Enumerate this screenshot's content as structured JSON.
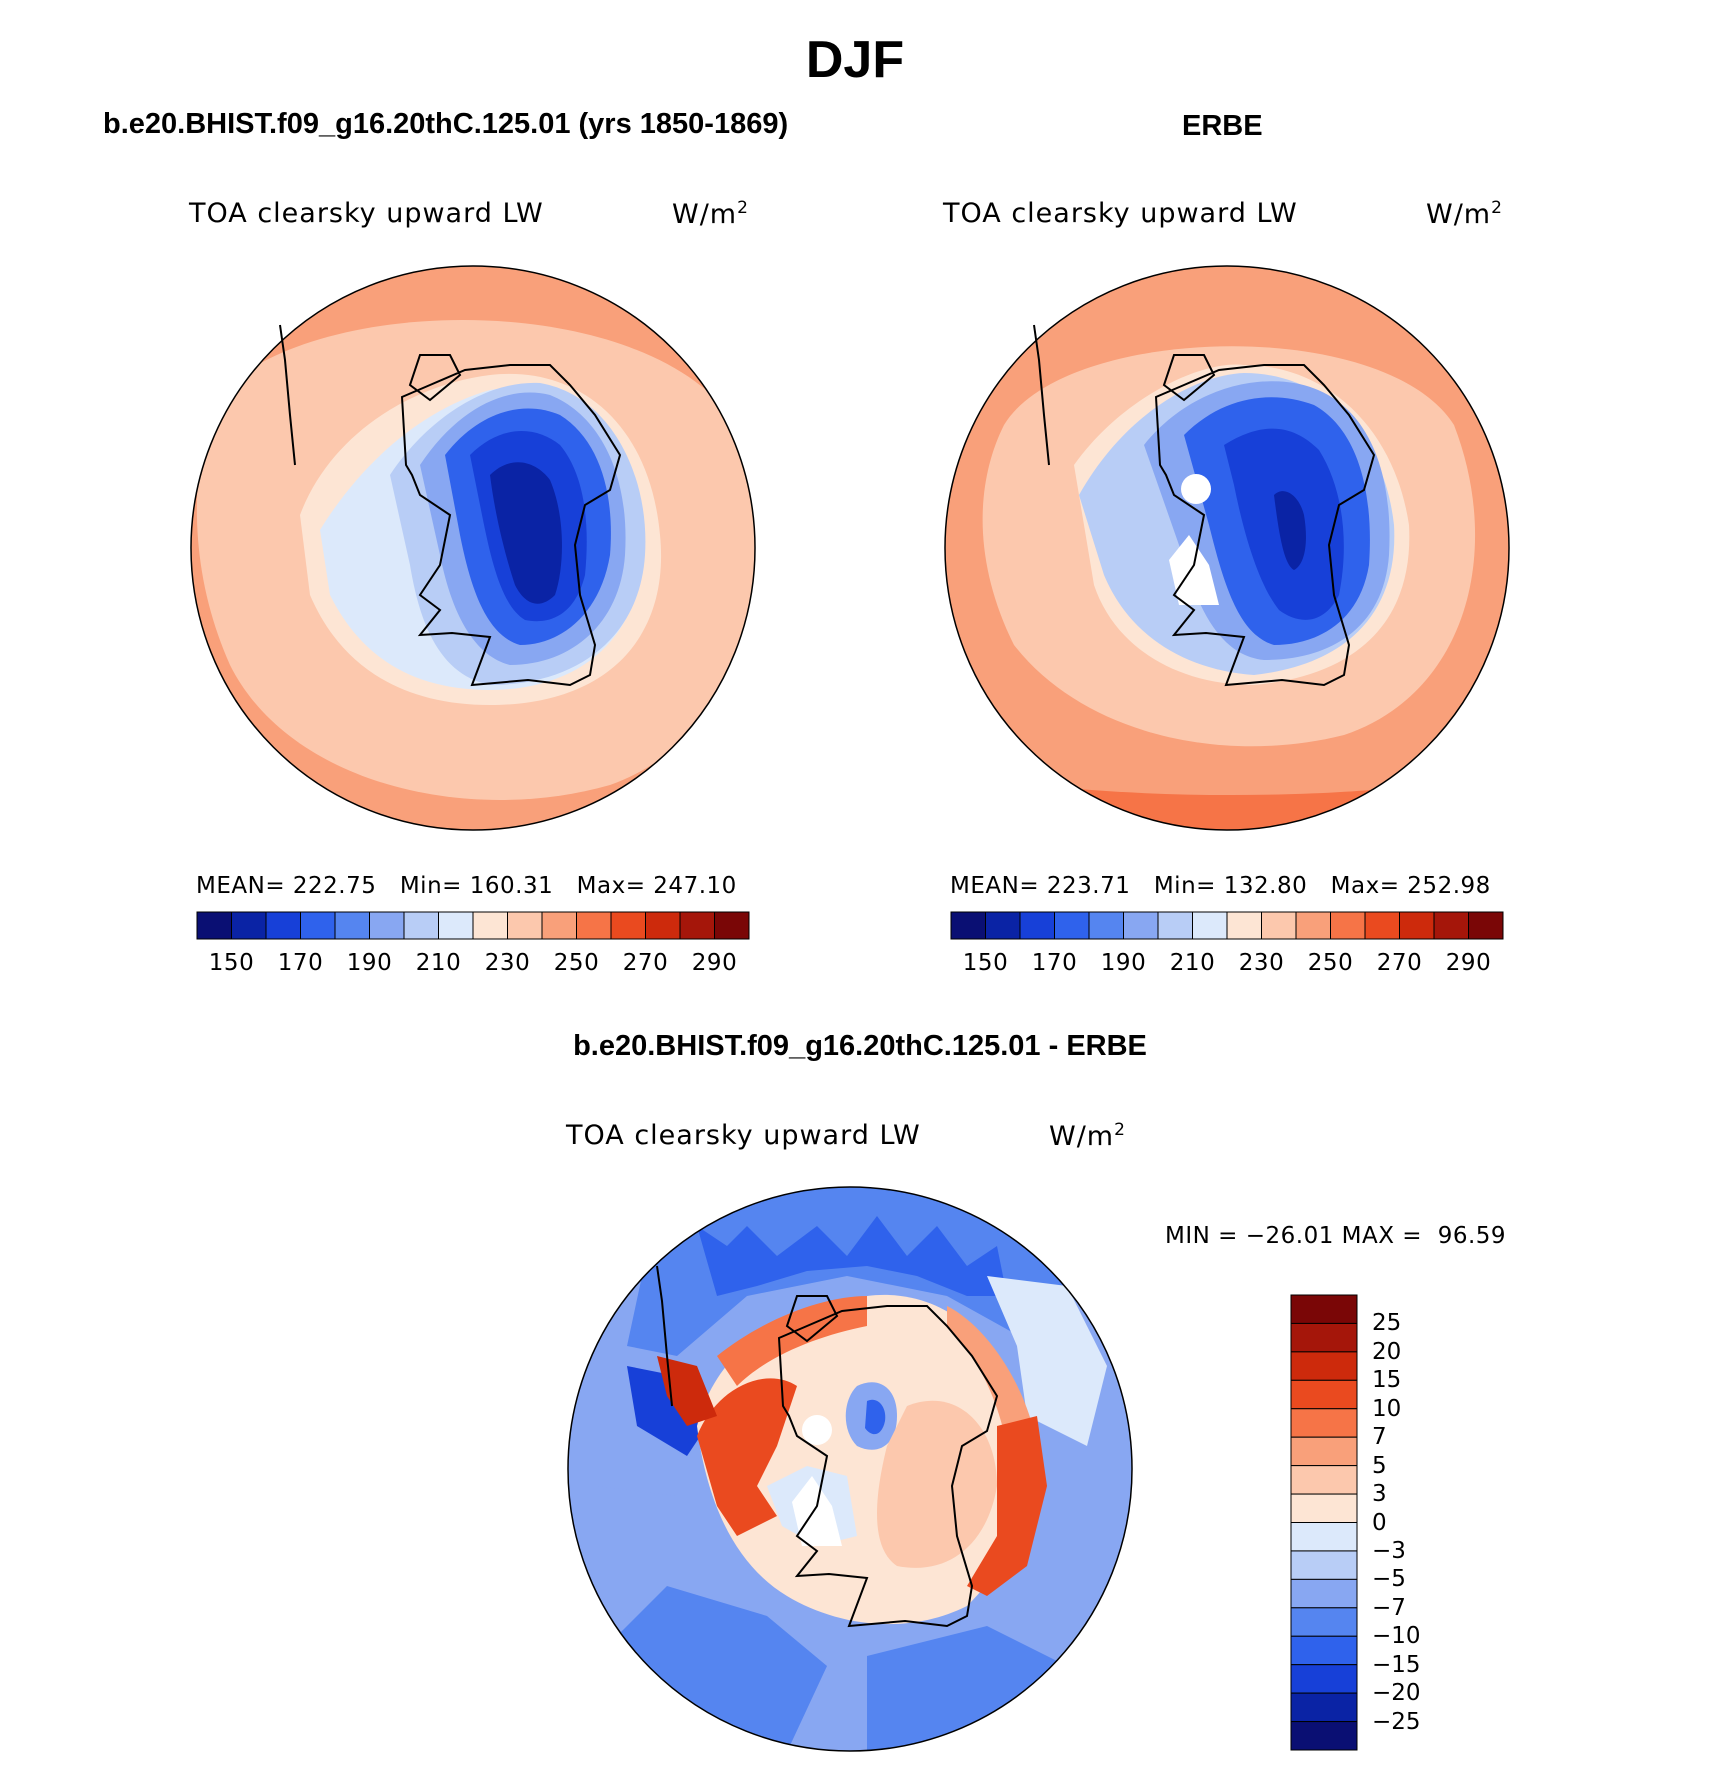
{
  "figure": {
    "season": "DJF"
  },
  "panels": {
    "model": {
      "title": "b.e20.BHIST.f09_g16.20thC.125.01 (yrs 1850-1869)",
      "variable": "TOA clearsky upward LW",
      "units": "W/m",
      "units_superscript": "2",
      "stats": {
        "mean_label": "MEAN=",
        "mean": "222.75",
        "min_label": "Min=",
        "min": "160.31",
        "max_label": "Max=",
        "max": "247.10"
      }
    },
    "obs": {
      "title": "ERBE",
      "variable": "TOA clearsky upward LW",
      "units": "W/m",
      "units_superscript": "2",
      "stats": {
        "mean_label": "MEAN=",
        "mean": "223.71",
        "min_label": "Min=",
        "min": "132.80",
        "max_label": "Max=",
        "max": "252.98"
      }
    },
    "diff": {
      "title": "b.e20.BHIST.f09_g16.20thC.125.01 - ERBE",
      "variable": "TOA clearsky upward LW",
      "units": "W/m",
      "units_superscript": "2",
      "minmax": "MIN = −26.01 MAX =  96.59"
    }
  },
  "colorbar_abs": {
    "tick_labels": [
      "150",
      "170",
      "190",
      "210",
      "230",
      "250",
      "270",
      "290"
    ],
    "colors": [
      "#0a0f73",
      "#0a23a5",
      "#1740d8",
      "#2f62ec",
      "#5585f0",
      "#88a7f2",
      "#b8cdf6",
      "#dce9fb",
      "#fde5d4",
      "#fcc8ad",
      "#f9a07a",
      "#f67447",
      "#ea4a1f",
      "#cd2a0c",
      "#a5160a",
      "#7a0606"
    ]
  },
  "colorbar_diff": {
    "tick_labels": [
      "25",
      "20",
      "15",
      "10",
      "7",
      "5",
      "3",
      "0",
      "−3",
      "−5",
      "−7",
      "−10",
      "−15",
      "−20",
      "−25"
    ],
    "colors": [
      "#7a0606",
      "#a5160a",
      "#cd2a0c",
      "#ea4a1f",
      "#f67447",
      "#f9a07a",
      "#fcc8ad",
      "#fde5d4",
      "#dce9fb",
      "#b8cdf6",
      "#88a7f2",
      "#5585f0",
      "#2f62ec",
      "#1740d8",
      "#0a23a5",
      "#0a0f73"
    ]
  }
}
